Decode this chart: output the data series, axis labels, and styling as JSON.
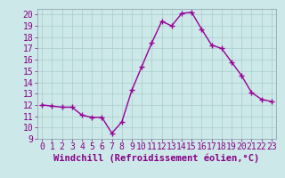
{
  "x": [
    0,
    1,
    2,
    3,
    4,
    5,
    6,
    7,
    8,
    9,
    10,
    11,
    12,
    13,
    14,
    15,
    16,
    17,
    18,
    19,
    20,
    21,
    22,
    23
  ],
  "y": [
    12.0,
    11.9,
    11.8,
    11.8,
    11.1,
    10.9,
    10.9,
    9.5,
    10.5,
    13.3,
    15.4,
    17.5,
    19.4,
    19.0,
    20.1,
    20.2,
    18.7,
    17.3,
    17.0,
    15.8,
    14.6,
    13.1,
    12.5,
    12.3
  ],
  "line_color": "#990099",
  "marker": "+",
  "marker_size": 4,
  "bg_color": "#cce8e8",
  "grid_color": "#aacccc",
  "xlabel": "Windchill (Refroidissement éolien,°C)",
  "xlim": [
    -0.5,
    23.5
  ],
  "ylim": [
    9,
    20.5
  ],
  "yticks": [
    9,
    10,
    11,
    12,
    13,
    14,
    15,
    16,
    17,
    18,
    19,
    20
  ],
  "xticks": [
    0,
    1,
    2,
    3,
    4,
    5,
    6,
    7,
    8,
    9,
    10,
    11,
    12,
    13,
    14,
    15,
    16,
    17,
    18,
    19,
    20,
    21,
    22,
    23
  ],
  "xlabel_fontsize": 7.5,
  "tick_fontsize": 7,
  "line_width": 1.0,
  "text_color": "#880088"
}
